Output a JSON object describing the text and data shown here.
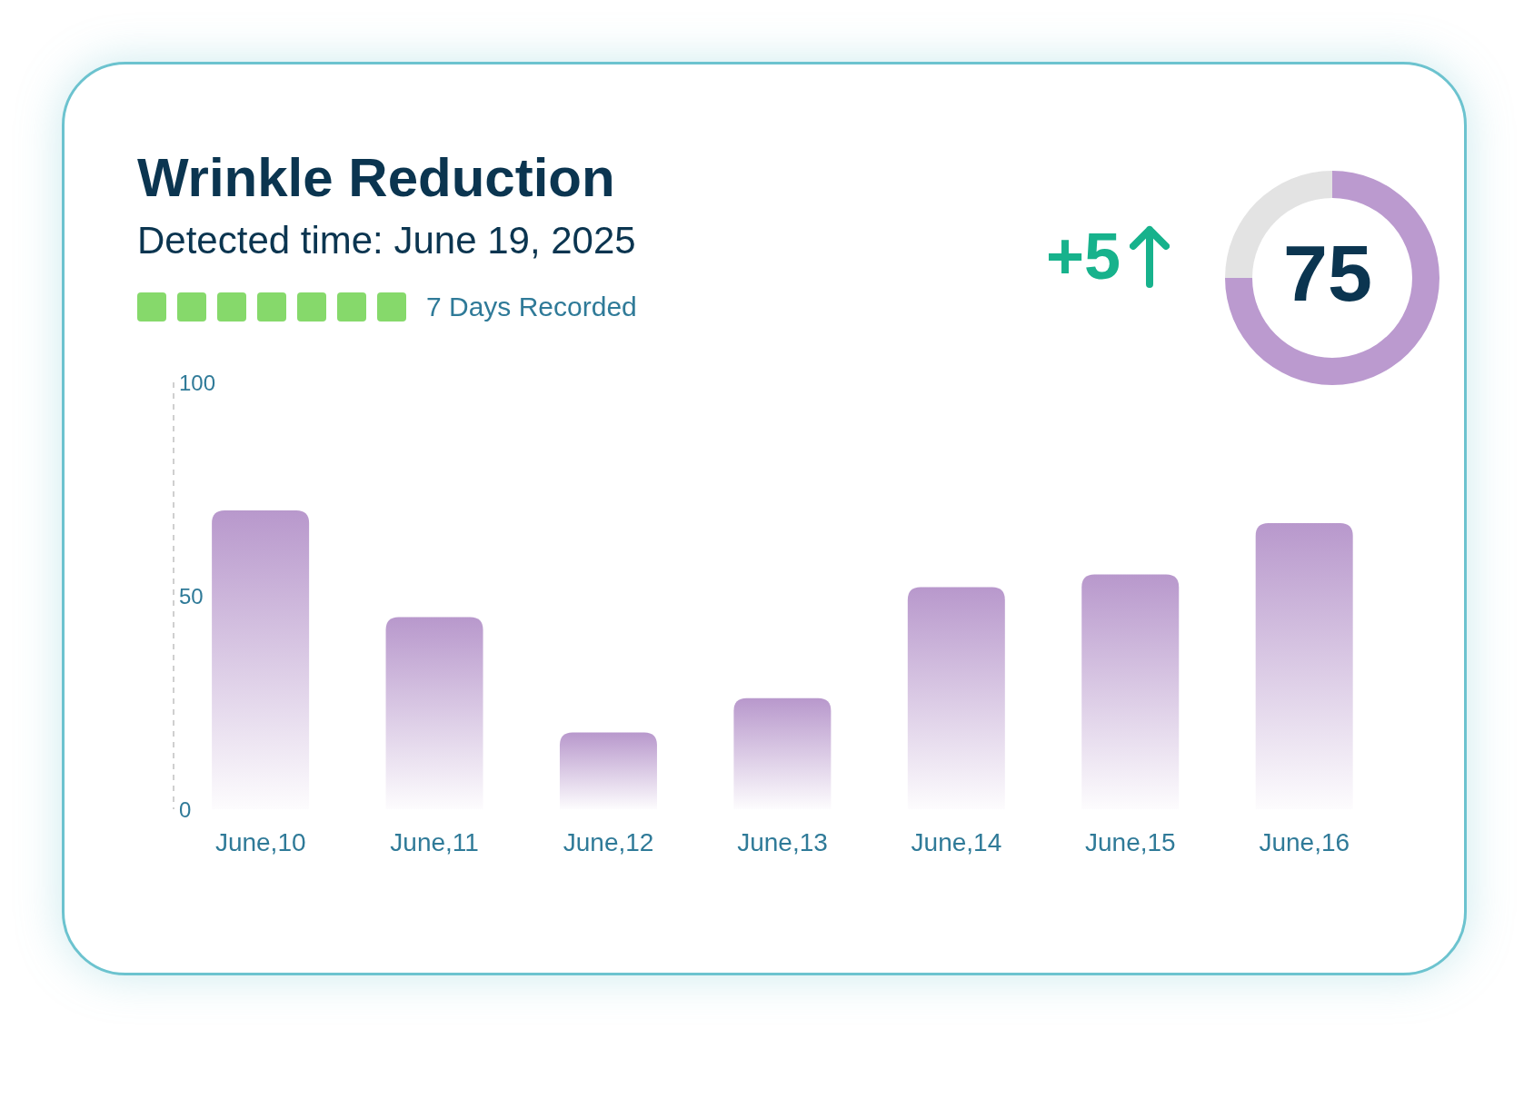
{
  "chart_data": [
    {
      "type": "bar",
      "title": "Wrinkle Reduction",
      "subtitle": "Detected time: June 19, 2025",
      "annotations": [
        "7 Days Recorded"
      ],
      "categories": [
        "June,10",
        "June,11",
        "June,12",
        "June,13",
        "June,14",
        "June,15",
        "June,16"
      ],
      "values": [
        70,
        45,
        18,
        26,
        52,
        55,
        67
      ],
      "color": "#b898cc",
      "ylim": [
        0,
        100
      ],
      "yticks": [
        0,
        50,
        100
      ]
    },
    {
      "type": "donut",
      "categories": [
        null,
        null
      ],
      "values": [
        75,
        25
      ],
      "colors": [
        "#bb9acf",
        "#e3e3e3"
      ],
      "annotations": [
        "+5",
        "75"
      ]
    }
  ]
}
